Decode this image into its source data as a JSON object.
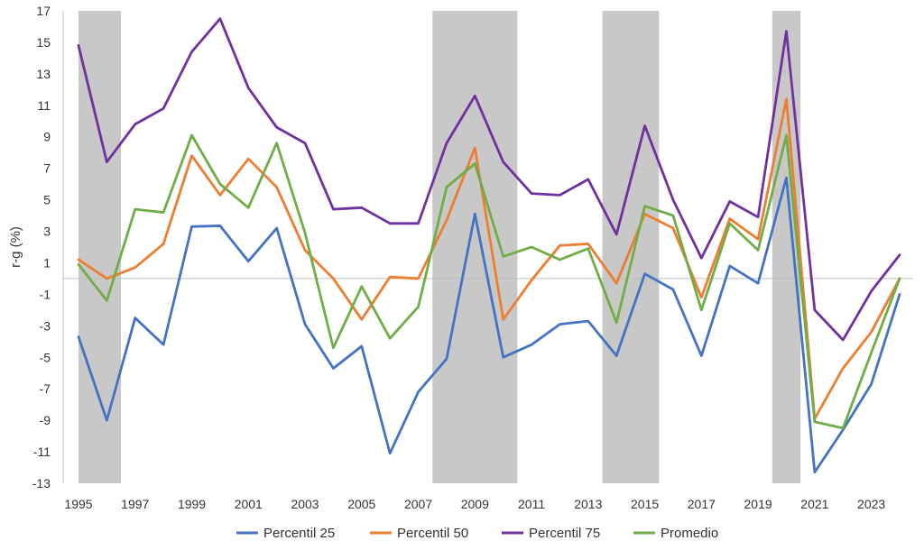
{
  "chart_data": {
    "type": "line",
    "title": "",
    "xlabel": "",
    "ylabel": "r-g (%)",
    "ylim": [
      -13,
      17
    ],
    "xlim": [
      1995,
      2024
    ],
    "x": [
      1995,
      1996,
      1997,
      1998,
      1999,
      2000,
      2001,
      2002,
      2003,
      2004,
      2005,
      2006,
      2007,
      2008,
      2009,
      2010,
      2011,
      2012,
      2013,
      2014,
      2015,
      2016,
      2017,
      2018,
      2019,
      2020,
      2021,
      2022,
      2023,
      2024
    ],
    "yticks": [
      -13,
      -11,
      -9,
      -7,
      -5,
      -3,
      -1,
      1,
      3,
      5,
      7,
      9,
      11,
      13,
      15,
      17
    ],
    "ytick_labels": [
      "-13",
      "-11",
      "-9",
      "-7",
      "-5",
      "-3",
      "-1",
      "1",
      "3",
      "5",
      "7",
      "9",
      "11",
      "13",
      "15",
      "17"
    ],
    "xticks": [
      1995,
      1997,
      1999,
      2001,
      2003,
      2005,
      2007,
      2009,
      2011,
      2013,
      2015,
      2017,
      2019,
      2021,
      2023
    ],
    "xtick_labels": [
      "1995",
      "1997",
      "1999",
      "2001",
      "2003",
      "2005",
      "2007",
      "2009",
      "2011",
      "2013",
      "2015",
      "2017",
      "2019",
      "2021",
      "2023"
    ],
    "shaded_periods": [
      [
        1995,
        1996.5
      ],
      [
        2007.5,
        2010.5
      ],
      [
        2013.5,
        2015.5
      ],
      [
        2019.5,
        2020.5
      ]
    ],
    "shade_color": "#c8c8c8",
    "series": [
      {
        "name": "Percentil 25",
        "color": "#4472c4",
        "values": [
          -3.7,
          -9.0,
          -2.5,
          -4.2,
          3.3,
          3.35,
          1.1,
          3.2,
          -2.9,
          -5.7,
          -4.3,
          -11.1,
          -7.2,
          -5.1,
          4.1,
          -5.0,
          -4.2,
          -2.9,
          -2.7,
          -4.9,
          0.3,
          -0.7,
          -4.9,
          0.8,
          -0.3,
          6.4,
          -12.3,
          -9.6,
          -6.7,
          -1.0
        ]
      },
      {
        "name": "Percentil 50",
        "color": "#ed7d31",
        "values": [
          1.2,
          0.0,
          0.7,
          2.2,
          7.8,
          5.3,
          7.6,
          5.8,
          1.8,
          0.0,
          -2.6,
          0.1,
          0.0,
          3.7,
          8.3,
          -2.6,
          -0.1,
          2.1,
          2.2,
          -0.3,
          4.1,
          3.2,
          -1.2,
          3.8,
          2.5,
          11.4,
          -8.9,
          -5.7,
          -3.4,
          0.0
        ]
      },
      {
        "name": "Percentil 75",
        "color": "#7030a0",
        "values": [
          14.8,
          7.4,
          9.8,
          10.8,
          14.4,
          16.5,
          12.1,
          9.6,
          8.6,
          4.4,
          4.5,
          3.5,
          3.5,
          8.6,
          11.6,
          7.4,
          5.4,
          5.3,
          6.3,
          2.8,
          9.7,
          5.0,
          1.3,
          4.9,
          3.9,
          15.7,
          -2.0,
          -3.9,
          -0.8,
          1.5
        ]
      },
      {
        "name": "Promedio",
        "color": "#70ad47",
        "values": [
          0.9,
          -1.4,
          4.4,
          4.2,
          9.1,
          6.0,
          4.5,
          8.6,
          2.9,
          -4.4,
          -0.5,
          -3.8,
          -1.8,
          5.8,
          7.3,
          1.4,
          2.0,
          1.2,
          1.9,
          -2.8,
          4.6,
          4.0,
          -2.0,
          3.5,
          1.8,
          9.1,
          -9.1,
          -9.5,
          -4.7,
          0.0
        ]
      }
    ],
    "legend": {
      "position": "bottom"
    },
    "grid": false
  }
}
